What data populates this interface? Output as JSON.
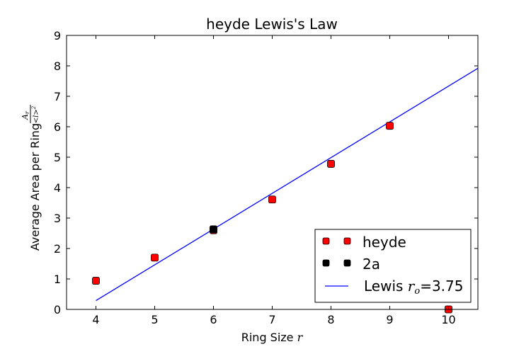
{
  "chart_data": {
    "type": "scatter",
    "title": "heyde Lewis's Law",
    "xlabel": "Ring Size ",
    "xlabel_math": "r",
    "ylabel": "Average Area per Ring ",
    "ylabel_math_num": "A",
    "ylabel_math_num_sub": "r",
    "ylabel_math_den": "<l>",
    "ylabel_math_den_sup": "2",
    "xlim": [
      3.5,
      10.5
    ],
    "ylim": [
      0,
      9
    ],
    "xticks": [
      4,
      5,
      6,
      7,
      8,
      9,
      10
    ],
    "yticks": [
      0,
      1,
      2,
      3,
      4,
      5,
      6,
      7,
      8,
      9
    ],
    "grid": false,
    "legend_position": "lower right",
    "series": [
      {
        "name": "heyde",
        "marker": "square",
        "color": "#ff0000",
        "x": [
          4,
          5,
          6,
          7,
          8,
          9,
          10
        ],
        "y": [
          0.94,
          1.7,
          2.6,
          3.61,
          4.78,
          6.03,
          0.0
        ]
      },
      {
        "name": "2a",
        "marker": "square",
        "color": "#000000",
        "x": [
          6
        ],
        "y": [
          2.63
        ]
      }
    ],
    "fit_line": {
      "name": "Lewis ",
      "name_math": "r",
      "name_math_sub": "o",
      "name_suffix": "=3.75",
      "color": "#0000ff",
      "x": [
        4,
        10.5
      ],
      "y": [
        0.29,
        7.92
      ]
    }
  }
}
